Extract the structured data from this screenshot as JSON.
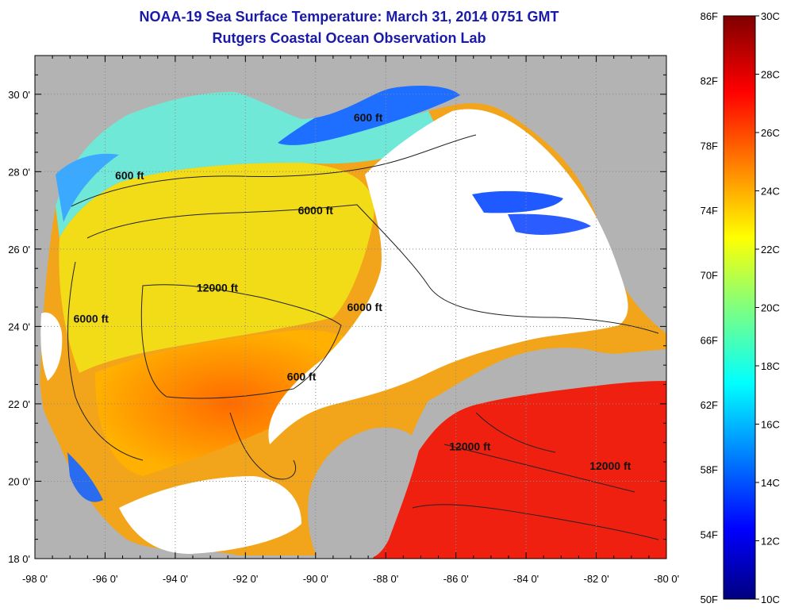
{
  "title": "NOAA-19 Sea Surface Temperature:  March 31, 2014 0751 GMT",
  "subtitle": "Rutgers Coastal Ocean Observation Lab",
  "map": {
    "lon_range": [
      -98,
      -80
    ],
    "lat_range": [
      18,
      31
    ],
    "lon_ticks": [
      "-98 0'",
      "-96 0'",
      "-94 0'",
      "-92 0'",
      "-90 0'",
      "-88 0'",
      "-86 0'",
      "-84 0'",
      "-82 0'",
      "-80 0'"
    ],
    "lat_ticks": [
      "18 0'",
      "20 0'",
      "22 0'",
      "24 0'",
      "26 0'",
      "28 0'",
      "30 0'"
    ],
    "depth_labels": [
      {
        "text": "600 ft",
        "lon": -95.3,
        "lat": 27.8
      },
      {
        "text": "600 ft",
        "lon": -88.5,
        "lat": 29.3
      },
      {
        "text": "6000 ft",
        "lon": -90.0,
        "lat": 26.9
      },
      {
        "text": "12000 ft",
        "lon": -92.8,
        "lat": 24.9
      },
      {
        "text": "6000 ft",
        "lon": -96.4,
        "lat": 24.1
      },
      {
        "text": "6000 ft",
        "lon": -88.6,
        "lat": 24.4
      },
      {
        "text": "600 ft",
        "lon": -90.4,
        "lat": 22.6
      },
      {
        "text": "12000 ft",
        "lon": -85.6,
        "lat": 20.8
      },
      {
        "text": "12000 ft",
        "lon": -81.6,
        "lat": 20.3
      }
    ],
    "colors": {
      "land": "#b3b3b3",
      "cloud": "#ffffff",
      "grid": "#8a8a8a"
    }
  },
  "colorbar": {
    "f_labels": [
      "86F",
      "82F",
      "78F",
      "74F",
      "70F",
      "66F",
      "62F",
      "58F",
      "54F",
      "50F"
    ],
    "c_labels": [
      "30C",
      "28C",
      "26C",
      "24C",
      "22C",
      "20C",
      "18C",
      "16C",
      "14C",
      "12C",
      "10C"
    ]
  }
}
